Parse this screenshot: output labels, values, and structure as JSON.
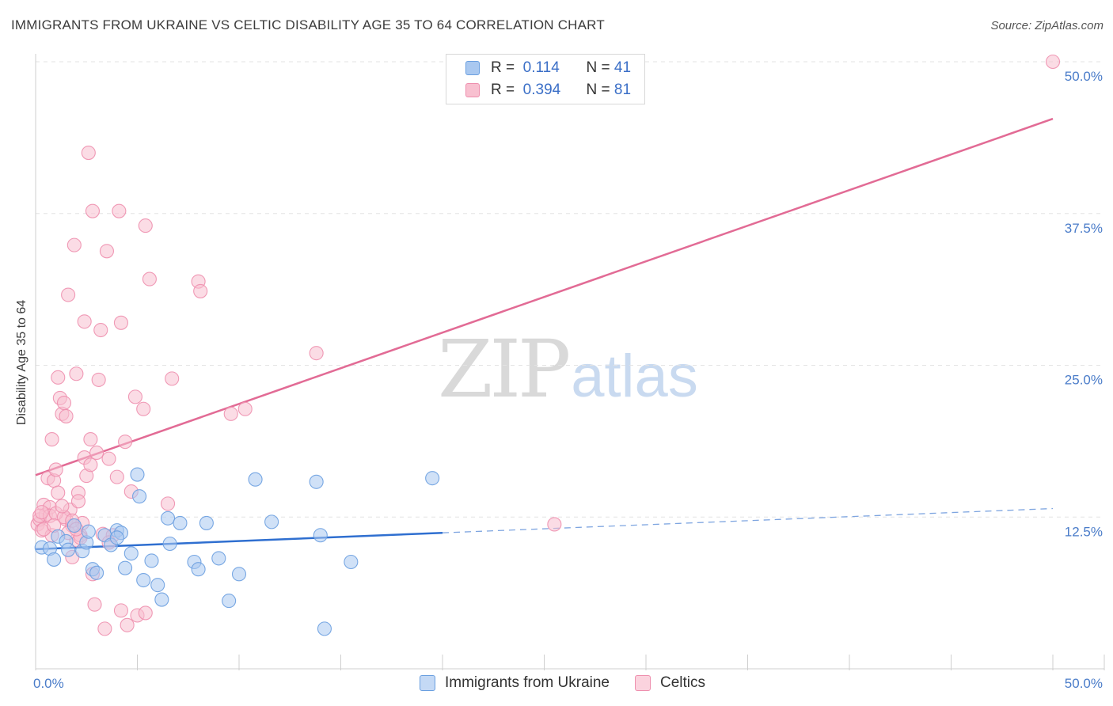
{
  "title": "IMMIGRANTS FROM UKRAINE VS CELTIC DISABILITY AGE 35 TO 64 CORRELATION CHART",
  "source": "Source: ZipAtlas.com",
  "watermark": {
    "zip": "ZIP",
    "atlas": "atlas"
  },
  "legend_top": {
    "rows": [
      {
        "r_label": "R =",
        "r_value": "0.114",
        "n_label": "N =",
        "n_value": "41",
        "color": "#a9c8f0",
        "stroke": "#6a9fe0"
      },
      {
        "r_label": "R =",
        "r_value": "0.394",
        "n_label": "N =",
        "n_value": "81",
        "color": "#f8c0d0",
        "stroke": "#ee8fae"
      }
    ]
  },
  "legend_bottom": {
    "items": [
      {
        "label": "Immigrants from Ukraine",
        "color": "#c4d9f5",
        "stroke": "#6a9fe0"
      },
      {
        "label": "Celtics",
        "color": "#fbd3de",
        "stroke": "#ee8fae"
      }
    ]
  },
  "chart_data": {
    "type": "scatter",
    "title": "IMMIGRANTS FROM UKRAINE VS CELTIC DISABILITY AGE 35 TO 64 CORRELATION CHART",
    "xlabel": "",
    "ylabel": "Disability Age 35 to 64",
    "xlim": [
      0,
      50
    ],
    "ylim": [
      0,
      50
    ],
    "x_tick_labels": [
      "0.0%",
      "50.0%"
    ],
    "y_tick_labels": [
      {
        "value": 12.5,
        "label": "12.5%"
      },
      {
        "value": 25.0,
        "label": "25.0%"
      },
      {
        "value": 37.5,
        "label": "37.5%"
      },
      {
        "value": 50.0,
        "label": "50.0%"
      }
    ],
    "grid": "horizontal dashed",
    "legend_position": "top-center",
    "series": [
      {
        "name": "Immigrants from Ukraine",
        "color": "#6a9fe0",
        "fill": "#a9c8f0",
        "points": [
          [
            0.3,
            10.0
          ],
          [
            0.7,
            9.9
          ],
          [
            0.9,
            9.0
          ],
          [
            1.1,
            10.9
          ],
          [
            1.5,
            10.5
          ],
          [
            1.6,
            9.8
          ],
          [
            1.9,
            11.8
          ],
          [
            2.3,
            9.7
          ],
          [
            2.5,
            10.4
          ],
          [
            2.8,
            8.2
          ],
          [
            3.0,
            7.9
          ],
          [
            3.4,
            11.0
          ],
          [
            3.7,
            10.2
          ],
          [
            4.0,
            11.4
          ],
          [
            4.2,
            11.2
          ],
          [
            4.4,
            8.3
          ],
          [
            4.7,
            9.5
          ],
          [
            5.0,
            16.0
          ],
          [
            5.1,
            14.2
          ],
          [
            5.3,
            7.3
          ],
          [
            5.7,
            8.9
          ],
          [
            6.0,
            6.9
          ],
          [
            6.2,
            5.7
          ],
          [
            6.5,
            12.4
          ],
          [
            6.6,
            10.3
          ],
          [
            7.1,
            12.0
          ],
          [
            7.8,
            8.8
          ],
          [
            8.0,
            8.2
          ],
          [
            8.4,
            12.0
          ],
          [
            9.0,
            9.1
          ],
          [
            9.5,
            5.6
          ],
          [
            10.0,
            7.8
          ],
          [
            10.8,
            15.6
          ],
          [
            11.6,
            12.1
          ],
          [
            13.8,
            15.4
          ],
          [
            14.0,
            11.0
          ],
          [
            14.2,
            3.3
          ],
          [
            15.5,
            8.8
          ],
          [
            19.5,
            15.7
          ],
          [
            2.6,
            11.3
          ],
          [
            4.0,
            10.8
          ]
        ],
        "trend": {
          "x0": 0,
          "y0": 9.85,
          "x1": 20,
          "y1": 11.2,
          "dash_to_x": 50,
          "dash_to_y": 13.2
        }
      },
      {
        "name": "Celtics",
        "color": "#ee8fae",
        "fill": "#f8c0d0",
        "points": [
          [
            0.1,
            11.9
          ],
          [
            0.2,
            12.3
          ],
          [
            0.3,
            11.4
          ],
          [
            0.4,
            13.5
          ],
          [
            0.5,
            12.7
          ],
          [
            0.6,
            15.7
          ],
          [
            0.7,
            13.3
          ],
          [
            0.8,
            18.9
          ],
          [
            0.8,
            11.0
          ],
          [
            0.9,
            15.5
          ],
          [
            1.0,
            16.4
          ],
          [
            1.1,
            24.0
          ],
          [
            1.1,
            14.5
          ],
          [
            1.2,
            22.3
          ],
          [
            1.3,
            21.0
          ],
          [
            1.4,
            21.9
          ],
          [
            1.5,
            20.8
          ],
          [
            1.5,
            12.3
          ],
          [
            1.6,
            30.8
          ],
          [
            1.7,
            13.1
          ],
          [
            1.8,
            9.2
          ],
          [
            1.8,
            11.8
          ],
          [
            1.9,
            34.9
          ],
          [
            2.0,
            24.3
          ],
          [
            2.0,
            10.6
          ],
          [
            2.1,
            14.5
          ],
          [
            2.1,
            13.8
          ],
          [
            2.2,
            11.0
          ],
          [
            2.3,
            12.0
          ],
          [
            2.4,
            28.6
          ],
          [
            2.4,
            17.4
          ],
          [
            2.5,
            15.9
          ],
          [
            2.6,
            42.5
          ],
          [
            2.7,
            16.8
          ],
          [
            2.7,
            18.9
          ],
          [
            2.8,
            37.7
          ],
          [
            2.8,
            7.8
          ],
          [
            2.9,
            5.3
          ],
          [
            3.0,
            17.8
          ],
          [
            3.1,
            23.8
          ],
          [
            3.2,
            27.9
          ],
          [
            3.3,
            11.1
          ],
          [
            3.4,
            3.3
          ],
          [
            3.5,
            34.4
          ],
          [
            3.6,
            17.3
          ],
          [
            3.8,
            11.0
          ],
          [
            4.0,
            15.8
          ],
          [
            4.1,
            37.7
          ],
          [
            4.2,
            4.8
          ],
          [
            4.2,
            28.5
          ],
          [
            4.4,
            18.7
          ],
          [
            4.5,
            3.6
          ],
          [
            4.7,
            14.6
          ],
          [
            4.9,
            22.4
          ],
          [
            5.0,
            4.4
          ],
          [
            5.3,
            21.4
          ],
          [
            5.4,
            4.6
          ],
          [
            5.4,
            36.5
          ],
          [
            5.6,
            32.1
          ],
          [
            6.5,
            13.6
          ],
          [
            6.7,
            23.9
          ],
          [
            8.0,
            31.9
          ],
          [
            8.1,
            31.1
          ],
          [
            9.6,
            21.0
          ],
          [
            10.3,
            21.4
          ],
          [
            13.8,
            26.0
          ],
          [
            25.5,
            11.9
          ],
          [
            50.0,
            50.0
          ],
          [
            0.2,
            12.6
          ],
          [
            0.4,
            11.5
          ],
          [
            0.7,
            12.6
          ],
          [
            1.0,
            12.8
          ],
          [
            1.4,
            12.5
          ],
          [
            1.6,
            11.2
          ],
          [
            1.8,
            12.2
          ],
          [
            2.2,
            10.8
          ],
          [
            3.6,
            10.4
          ],
          [
            0.3,
            12.9
          ],
          [
            1.3,
            13.4
          ],
          [
            0.9,
            11.8
          ],
          [
            2.0,
            11.5
          ]
        ],
        "trend": {
          "x0": 0,
          "y0": 15.95,
          "x1": 50,
          "y1": 45.3
        }
      }
    ]
  }
}
